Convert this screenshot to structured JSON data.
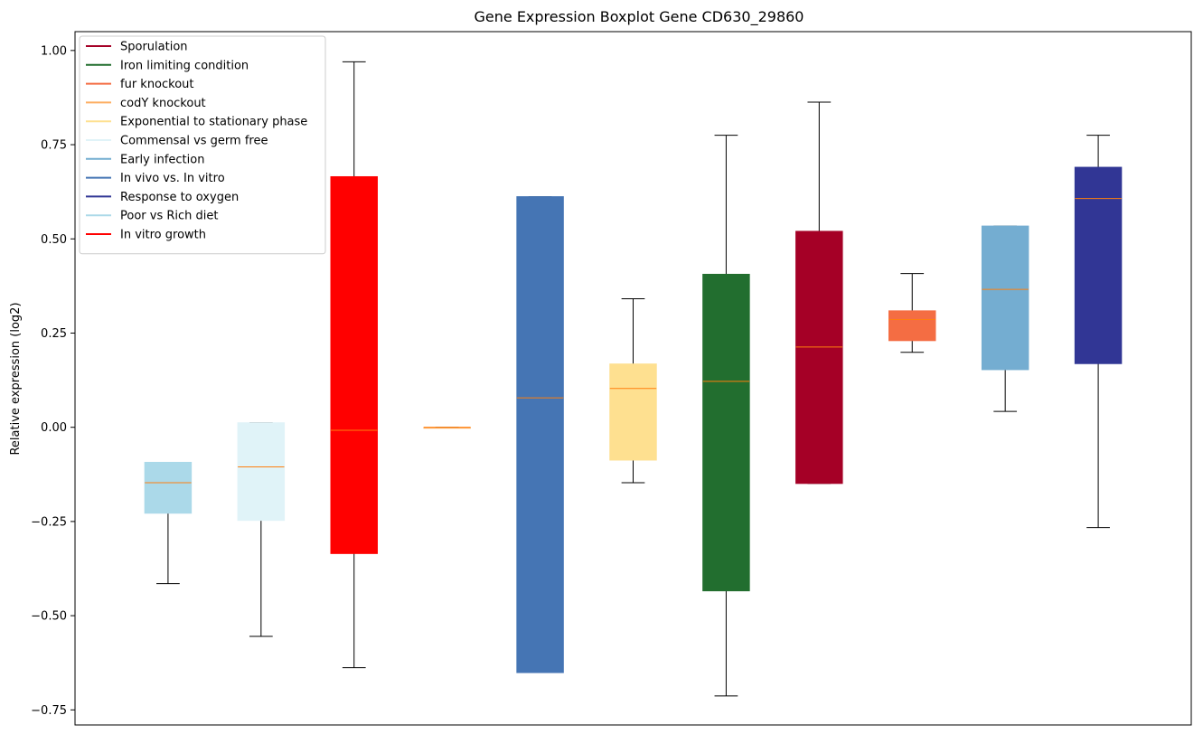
{
  "chart_data": {
    "type": "box",
    "title": "Gene Expression Boxplot Gene CD630_29860",
    "xlabel": "",
    "ylabel": "Relative expression (log2)",
    "ylim": [
      -0.79,
      1.05
    ],
    "yticks": [
      -0.75,
      -0.5,
      -0.25,
      0.0,
      0.25,
      0.5,
      0.75,
      1.0
    ],
    "ytick_labels": [
      "−0.75",
      "−0.50",
      "−0.25",
      "0.00",
      "0.25",
      "0.50",
      "0.75",
      "1.00"
    ],
    "legend_position": "top-left",
    "median_color": "#ff7f0e",
    "legend": [
      {
        "label": "Sporulation",
        "color": "#a50026"
      },
      {
        "label": "Iron limiting condition",
        "color": "#226e2f"
      },
      {
        "label": "fur knockout",
        "color": "#f46d43"
      },
      {
        "label": "codY knockout",
        "color": "#fdae61"
      },
      {
        "label": "Exponential to stationary phase",
        "color": "#fee090"
      },
      {
        "label": "Commensal vs germ free",
        "color": "#e0f3f8"
      },
      {
        "label": "Early infection",
        "color": "#74add1"
      },
      {
        "label": "In vivo vs. In vitro",
        "color": "#4575b4"
      },
      {
        "label": "Response to oxygen",
        "color": "#313695"
      },
      {
        "label": "Poor vs Rich diet",
        "color": "#abd9e9"
      },
      {
        "label": "In vitro growth",
        "color": "#ff0000"
      }
    ],
    "boxes": [
      {
        "color": "#abd9e9",
        "whislo": -0.415,
        "q1": -0.228,
        "med": -0.147,
        "q3": -0.093,
        "whishi": -0.093
      },
      {
        "color": "#e0f3f8",
        "whislo": -0.555,
        "q1": -0.247,
        "med": -0.105,
        "q3": 0.012,
        "whishi": 0.012
      },
      {
        "color": "#ff0000",
        "whislo": -0.638,
        "q1": -0.335,
        "med": -0.008,
        "q3": 0.665,
        "whishi": 0.97
      },
      {
        "color": "#fdae61",
        "whislo": 0.0,
        "q1": 0.0,
        "med": 0.0,
        "q3": 0.0,
        "whishi": 0.0
      },
      {
        "color": "#4575b4",
        "whislo": -0.651,
        "q1": -0.651,
        "med": 0.078,
        "q3": 0.612,
        "whishi": 0.612
      },
      {
        "color": "#fee090",
        "whislo": -0.147,
        "q1": -0.087,
        "med": 0.103,
        "q3": 0.168,
        "whishi": 0.341
      },
      {
        "color": "#226e2f",
        "whislo": -0.713,
        "q1": -0.434,
        "med": 0.122,
        "q3": 0.406,
        "whishi": 0.775
      },
      {
        "color": "#a50026",
        "whislo": -0.149,
        "q1": -0.149,
        "med": 0.213,
        "q3": 0.52,
        "whishi": 0.863
      },
      {
        "color": "#f46d43",
        "whislo": 0.199,
        "q1": 0.23,
        "med": 0.286,
        "q3": 0.309,
        "whishi": 0.408
      },
      {
        "color": "#74add1",
        "whislo": 0.042,
        "q1": 0.153,
        "med": 0.366,
        "q3": 0.534,
        "whishi": 0.534
      },
      {
        "color": "#313695",
        "whislo": -0.266,
        "q1": 0.169,
        "med": 0.607,
        "q3": 0.69,
        "whishi": 0.775
      }
    ]
  }
}
